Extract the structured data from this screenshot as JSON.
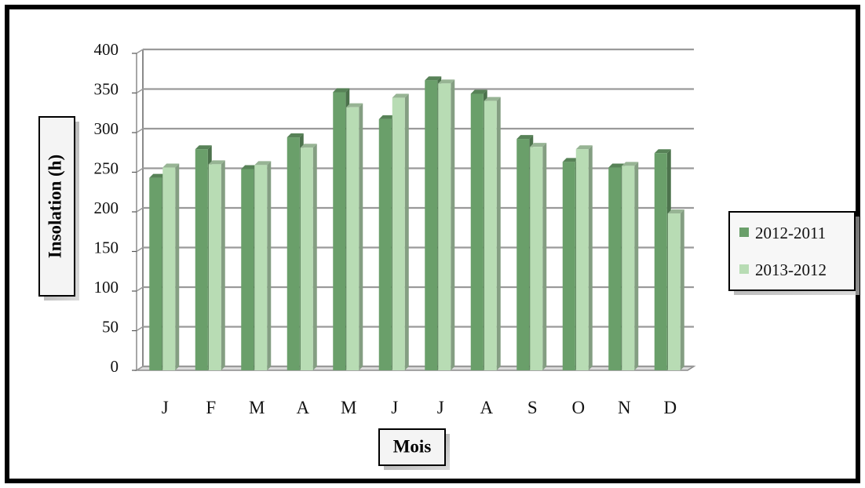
{
  "chart_data": {
    "type": "bar",
    "xlabel": "Mois",
    "ylabel": "Insolation  (h)",
    "categories": [
      "J",
      "F",
      "M",
      "A",
      "M",
      "J",
      "J",
      "A",
      "S",
      "O",
      "N",
      "D"
    ],
    "series": [
      {
        "name": "2012-2011",
        "color": "#6a9f6a",
        "values": [
          243,
          279,
          254,
          294,
          351,
          317,
          366,
          349,
          292,
          263,
          256,
          274
        ]
      },
      {
        "name": "2013-2012",
        "color": "#b8dcb4",
        "values": [
          256,
          260,
          259,
          281,
          332,
          344,
          362,
          340,
          282,
          279,
          258,
          198
        ]
      }
    ],
    "ylim": [
      0,
      400
    ],
    "yticks": [
      0,
      50,
      100,
      150,
      200,
      250,
      300,
      350,
      400
    ],
    "grid": true,
    "legend_position": "right"
  }
}
